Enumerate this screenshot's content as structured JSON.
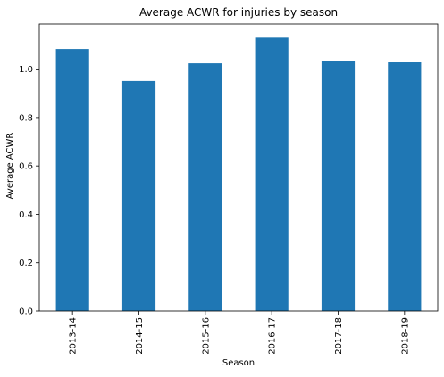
{
  "chart_data": {
    "type": "bar",
    "title": "Average ACWR for injuries by season",
    "xlabel": "Season",
    "ylabel": "Average ACWR",
    "categories": [
      "2013-14",
      "2014-15",
      "2015-16",
      "2016-17",
      "2017-18",
      "2018-19"
    ],
    "values": [
      1.083,
      0.951,
      1.024,
      1.13,
      1.032,
      1.028
    ],
    "ylim": [
      0,
      1.1865
    ],
    "yticks": [
      "0.0",
      "0.2",
      "0.4",
      "0.6",
      "0.8",
      "1.0"
    ],
    "grid": false,
    "legend": "none",
    "bar_color": "#1f77b4"
  }
}
